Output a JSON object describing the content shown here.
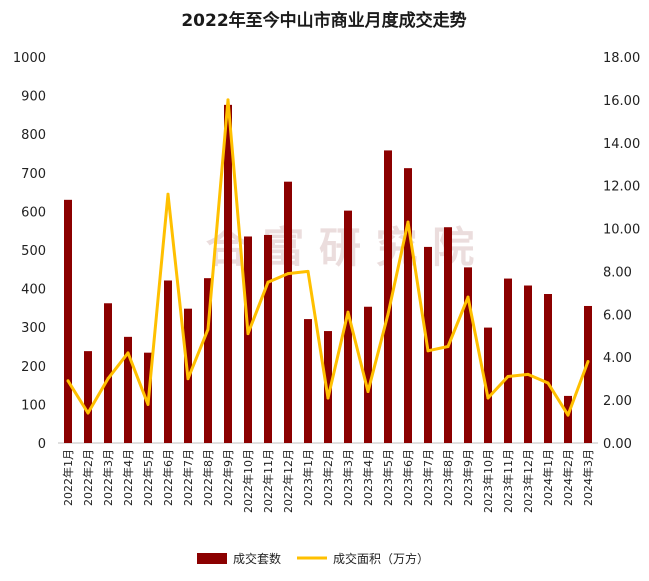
{
  "chart_data": {
    "type": "bar",
    "title": "2022年至今中山市商业月度成交走势",
    "categories": [
      "2022年1月",
      "2022年2月",
      "2022年3月",
      "2022年4月",
      "2022年5月",
      "2022年6月",
      "2022年7月",
      "2022年8月",
      "2022年9月",
      "2022年10月",
      "2022年11月",
      "2022年12月",
      "2023年1月",
      "2023年2月",
      "2023年3月",
      "2023年4月",
      "2023年5月",
      "2023年6月",
      "2023年7月",
      "2023年8月",
      "2023年9月",
      "2023年10月",
      "2023年11月",
      "2023年12月",
      "2024年1月",
      "2024年2月",
      "2024年3月"
    ],
    "series": [
      {
        "name": "成交套数",
        "type": "bar",
        "axis": "left",
        "color": "#8b0000",
        "values": [
          630,
          238,
          362,
          275,
          234,
          421,
          348,
          427,
          876,
          535,
          539,
          677,
          321,
          290,
          602,
          353,
          758,
          712,
          508,
          559,
          455,
          299,
          426,
          408,
          386,
          122,
          355
        ]
      },
      {
        "name": "成交面积（万方）",
        "type": "line",
        "axis": "right",
        "color": "#ffc000",
        "values": [
          2.9,
          1.4,
          3.0,
          4.2,
          1.8,
          11.6,
          3.0,
          5.3,
          16.0,
          5.1,
          7.5,
          7.9,
          8.0,
          2.1,
          6.1,
          2.4,
          6.0,
          10.3,
          4.3,
          4.5,
          6.8,
          2.1,
          3.1,
          3.2,
          2.8,
          1.3,
          3.8
        ]
      }
    ],
    "yleft": {
      "min": 0,
      "max": 1000,
      "ticks": [
        "0",
        "100",
        "200",
        "300",
        "400",
        "500",
        "600",
        "700",
        "800",
        "900",
        "1000"
      ]
    },
    "yright": {
      "min": 0,
      "max": 18,
      "ticks": [
        "0.00",
        "2.00",
        "4.00",
        "6.00",
        "8.00",
        "10.00",
        "12.00",
        "14.00",
        "16.00",
        "18.00"
      ]
    },
    "legend_position": "bottom",
    "grid": false
  },
  "watermark": {
    "text": "合 富 研 究 院",
    "color": "#c8a0a0"
  }
}
